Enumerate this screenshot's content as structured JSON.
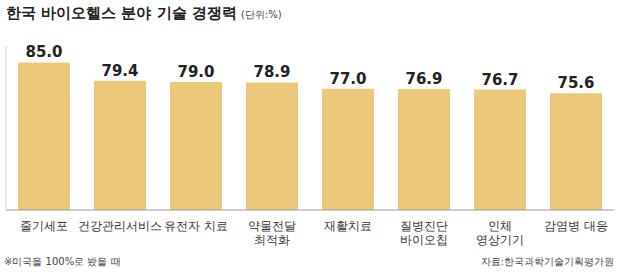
{
  "chart_data": {
    "type": "bar",
    "title": "한국 바이오헬스 분야 기술 경쟁력",
    "subtitle": "(단위:%)",
    "categories": [
      "줄기세포",
      "건강관리서비스",
      "유전자 치료",
      "약물전달 최적화",
      "재활치료",
      "질병진단 바이오칩",
      "인체 영상기기",
      "감염병 대응"
    ],
    "values": [
      85.0,
      79.4,
      79.0,
      78.9,
      77.0,
      76.9,
      76.7,
      75.6
    ],
    "value_labels": [
      "85.0",
      "79.4",
      "79.0",
      "78.9",
      "77.0",
      "76.9",
      "76.7",
      "75.6"
    ],
    "color": "#ecc97a",
    "ylim": [
      40,
      90
    ],
    "yticks": [
      40,
      90
    ],
    "tick_labels": "x",
    "data_labels": true,
    "grid": false,
    "annotations": [
      "※미국을 100%로 봤을 때",
      "자료:한국과학기술기획평가원"
    ]
  }
}
